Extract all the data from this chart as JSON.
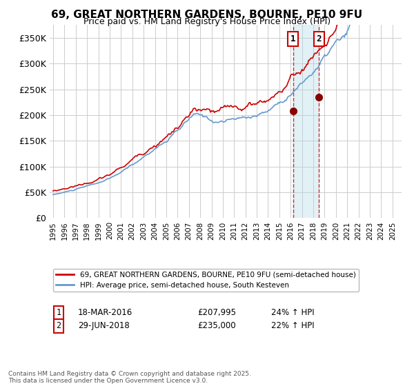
{
  "title": "69, GREAT NORTHERN GARDENS, BOURNE, PE10 9FU",
  "subtitle": "Price paid vs. HM Land Registry's House Price Index (HPI)",
  "legend1": "69, GREAT NORTHERN GARDENS, BOURNE, PE10 9FU (semi-detached house)",
  "legend2": "HPI: Average price, semi-detached house, South Kesteven",
  "sale1_date": "18-MAR-2016",
  "sale1_price": 207995,
  "sale1_hpi": "24% ↑ HPI",
  "sale2_date": "29-JUN-2018",
  "sale2_price": 235000,
  "sale2_hpi": "22% ↑ HPI",
  "footnote": "Contains HM Land Registry data © Crown copyright and database right 2025.\nThis data is licensed under the Open Government Licence v3.0.",
  "red_color": "#cc0000",
  "blue_color": "#6699cc",
  "bg_color": "#ffffff",
  "grid_color": "#cccccc",
  "ylim": [
    0,
    375000
  ],
  "yticks": [
    0,
    50000,
    100000,
    150000,
    200000,
    250000,
    300000,
    350000
  ],
  "ytick_labels": [
    "£0",
    "£50K",
    "£100K",
    "£150K",
    "£200K",
    "£250K",
    "£300K",
    "£350K"
  ],
  "xstart_year": 1995,
  "xend_year": 2025,
  "sale1_x": 2016.21,
  "sale2_x": 2018.5
}
